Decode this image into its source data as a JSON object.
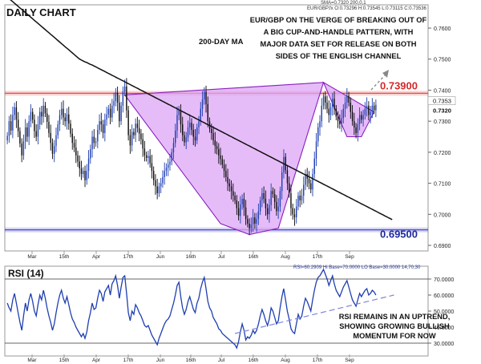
{
  "header": {
    "title": "DAILY CHART",
    "ma_label": "200-DAY MA",
    "info_line": "EUR/GBP.fx O:0.73296 H:0.73545 L:0.73115 C:0.73536",
    "sma_line": "SMA=0.7320  200,0,1",
    "annotation": [
      "EUR/GBP ON THE VERGE OF BREAKING OUT OF",
      "A BIG CUP-AND-HANDLE PATTERN, WITH",
      "MAJOR DATA SET FOR RELEASE ON BOTH",
      "SIDES OF THE ENGLISH CHANNEL"
    ]
  },
  "colors": {
    "bull": "#1f3fb0",
    "bear": "#0a0a0a",
    "resistance": "#e23b3b",
    "support": "#3a3acc",
    "cup_fill": "#dca6f6",
    "cup_edge": "#8a1fbf",
    "rsi": "#1f3fb0"
  },
  "rsi_panel": {
    "title": "RSI (14)",
    "info_line": "RSI=60.2909  Hi Base=70.0000  LO Base=30.0000     14,70,30",
    "note": [
      "RSI REMAINS IN AN UPTREND,",
      "SHOWING GROWING BULLISH",
      "MOMENTUM FOR NOW"
    ]
  },
  "chart_data": [
    {
      "type": "candlestick",
      "title": "DAILY CHART",
      "instrument": "EUR/GBP",
      "x_tick_labels": [
        "Mar",
        "15th",
        "Apr",
        "17th",
        "Jun",
        "16th",
        "Jul",
        "16th",
        "Aug",
        "17th",
        "Sep"
      ],
      "y_ticks": [
        0.76,
        0.75,
        0.74,
        0.73,
        0.72,
        0.71,
        0.7,
        0.69
      ],
      "y_tick_labels": [
        "0.7600",
        "0.7500",
        "0.7400",
        "0.7300",
        "0.7200",
        "0.7100",
        "0.7000",
        "0.6900"
      ],
      "ylim": [
        0.6882,
        0.7675
      ],
      "levels": [
        {
          "name": "resistance",
          "label": "0.73900",
          "value": 0.739
        },
        {
          "name": "support",
          "label": "0.69500",
          "value": 0.695
        }
      ],
      "current_price_labels": [
        "0.7353",
        "0.7320"
      ],
      "series": [
        {
          "name": "EUR/GBP",
          "close": [
            0.7253,
            0.73,
            0.727,
            0.732,
            0.7345,
            0.7305,
            0.7268,
            0.7228,
            0.719,
            0.7235,
            0.728,
            0.725,
            0.73,
            0.733,
            0.7305,
            0.7268,
            0.725,
            0.729,
            0.733,
            0.7315,
            0.735,
            0.7325,
            0.7298,
            0.7262,
            0.723,
            0.7195,
            0.722,
            0.7255,
            0.729,
            0.732,
            0.734,
            0.7312,
            0.73,
            0.7322,
            0.7292,
            0.726,
            0.723,
            0.7215,
            0.719,
            0.717,
            0.7148,
            0.713,
            0.714,
            0.711,
            0.714,
            0.718,
            0.721,
            0.725,
            0.723,
            0.7235,
            0.7272,
            0.73,
            0.729,
            0.7262,
            0.7305,
            0.7322,
            0.734,
            0.7312,
            0.735,
            0.7365,
            0.7392,
            0.736,
            0.73,
            0.735,
            0.7395,
            0.7412,
            0.7335,
            0.7255,
            0.7222,
            0.7265,
            0.7255,
            0.7292,
            0.7278,
            0.726,
            0.7242,
            0.7212,
            0.719,
            0.7182,
            0.7188,
            0.7165,
            0.714,
            0.711,
            0.709,
            0.7068,
            0.709,
            0.71,
            0.712,
            0.714,
            0.715,
            0.716,
            0.717,
            0.72,
            0.723,
            0.727,
            0.732,
            0.7335,
            0.729,
            0.7255,
            0.7232,
            0.7248,
            0.728,
            0.7295,
            0.7272,
            0.725,
            0.7238,
            0.728,
            0.73,
            0.734,
            0.737,
            0.7395,
            0.7355,
            0.73,
            0.7275,
            0.7262,
            0.7238,
            0.722,
            0.721,
            0.719,
            0.7178,
            0.716,
            0.714,
            0.712,
            0.71,
            0.709,
            0.7075,
            0.706,
            0.7045,
            0.702,
            0.6995,
            0.7032,
            0.705,
            0.7022,
            0.6985,
            0.697,
            0.6955,
            0.6968,
            0.699,
            0.697,
            0.6985,
            0.701,
            0.7045,
            0.7068,
            0.705,
            0.702,
            0.7,
            0.703,
            0.7075,
            0.7065,
            0.704,
            0.701,
            0.7025,
            0.7075,
            0.7135,
            0.7185,
            0.7142,
            0.71,
            0.7068,
            0.702,
            0.7,
            0.699,
            0.7025,
            0.706,
            0.7045,
            0.706,
            0.7095,
            0.713,
            0.7115,
            0.71,
            0.708,
            0.713,
            0.718,
            0.7235,
            0.728,
            0.73,
            0.735,
            0.738,
            0.736,
            0.734,
            0.732,
            0.7345,
            0.7372,
            0.734,
            0.7315,
            0.73,
            0.729,
            0.731,
            0.734,
            0.736,
            0.7382,
            0.736,
            0.733,
            0.73,
            0.728,
            0.7262,
            0.729,
            0.732,
            0.7305,
            0.732,
            0.734,
            0.735,
            0.732,
            0.733,
            0.735,
            0.7335,
            0.7353
          ]
        },
        {
          "name": "200-DAY MA",
          "value": [
            0.77,
            0.7695,
            0.769,
            0.7685,
            0.768,
            0.7675,
            0.767,
            0.7665,
            0.766,
            0.7655,
            0.765,
            0.7645,
            0.764,
            0.7635,
            0.763,
            0.7625,
            0.762,
            0.7615,
            0.761,
            0.7605,
            0.76,
            0.7595,
            0.759,
            0.7585,
            0.758,
            0.7575,
            0.757,
            0.7565,
            0.756,
            0.7555,
            0.755,
            0.7545,
            0.754,
            0.7535,
            0.753,
            0.7525,
            0.752,
            0.7515,
            0.751,
            0.7505,
            0.75,
            0.7497,
            0.7494,
            0.7491,
            0.7489,
            0.7486,
            0.7483,
            0.7481,
            0.7478,
            0.7475,
            0.7472,
            0.7469,
            0.7466,
            0.7463,
            0.746,
            0.7457,
            0.7454,
            0.7451,
            0.7448,
            0.7445,
            0.7442,
            0.7439,
            0.7436,
            0.7433,
            0.743,
            0.7427,
            0.7424,
            0.7421,
            0.7418,
            0.7415,
            0.7412,
            0.7409,
            0.7406,
            0.7403,
            0.74,
            0.7397,
            0.7394,
            0.7391,
            0.7388,
            0.7385,
            0.7382,
            0.7379,
            0.7376,
            0.7373,
            0.737,
            0.7367,
            0.7364,
            0.7361,
            0.7358,
            0.7355,
            0.7352,
            0.7349,
            0.7346,
            0.7343,
            0.734,
            0.7337,
            0.7334,
            0.7331,
            0.7328,
            0.7325,
            0.7322,
            0.7319,
            0.7316,
            0.7313,
            0.731,
            0.7307,
            0.7304,
            0.7301,
            0.7298,
            0.7295,
            0.7292,
            0.7289,
            0.7286,
            0.7283,
            0.728,
            0.7277,
            0.7274,
            0.7271,
            0.7268,
            0.7265,
            0.7262,
            0.7259,
            0.7256,
            0.7253,
            0.725,
            0.7247,
            0.7244,
            0.7241,
            0.7238,
            0.7235,
            0.7232,
            0.7229,
            0.7226,
            0.7223,
            0.722,
            0.7217,
            0.7214,
            0.7211,
            0.7208,
            0.7205,
            0.7202,
            0.7199,
            0.7196,
            0.7193,
            0.719,
            0.7187,
            0.7184,
            0.7181,
            0.7178,
            0.7175,
            0.7172,
            0.7169,
            0.7166,
            0.7163,
            0.716,
            0.7157,
            0.7154,
            0.7151,
            0.7148,
            0.7145,
            0.7142,
            0.7139,
            0.7136,
            0.7133,
            0.713,
            0.7127,
            0.7124,
            0.7121,
            0.7118,
            0.7115,
            0.7112,
            0.7109,
            0.7106,
            0.7103,
            0.71,
            0.7097,
            0.7094,
            0.7091,
            0.7088,
            0.7085,
            0.7082,
            0.7079,
            0.7076,
            0.7073,
            0.707,
            0.7067,
            0.7064,
            0.7061,
            0.7058,
            0.7055,
            0.7052,
            0.7049,
            0.7046,
            0.7043,
            0.704,
            0.7037,
            0.7034,
            0.7031,
            0.7028,
            0.7025,
            0.7022,
            0.7019,
            0.7016,
            0.7013,
            0.701,
            0.7007,
            0.7004,
            0.7001,
            0.6998,
            0.6995,
            0.6992,
            0.6989,
            0.6986,
            0.6983
          ]
        }
      ],
      "cup_and_handle": {
        "cup_points": [
          [
            0.7385,
            "Jun"
          ],
          [
            0.697,
            "Jul"
          ],
          [
            0.6935,
            "Jul 16th"
          ],
          [
            0.6955,
            "Aug"
          ],
          [
            0.7425,
            "Aug 17th"
          ]
        ]
      }
    },
    {
      "type": "line",
      "title": "RSI (14)",
      "x_tick_labels": [
        "Mar",
        "15th",
        "Apr",
        "17th",
        "Jun",
        "16th",
        "Jul",
        "16th",
        "Aug",
        "17th",
        "Sep"
      ],
      "y_ticks": [
        30,
        40,
        50,
        60,
        70
      ],
      "y_tick_labels": [
        "30.0000",
        "40.0000",
        "50.0000",
        "60.0000",
        "70.0000"
      ],
      "ylim": [
        22,
        78
      ],
      "levels": [
        70,
        30
      ],
      "series": [
        {
          "name": "RSI",
          "values": [
            55,
            52,
            50,
            57,
            61,
            55,
            49,
            43,
            38,
            47,
            55,
            50,
            57,
            61,
            56,
            50,
            47,
            54,
            60,
            57,
            63,
            58,
            52,
            47,
            43,
            38,
            42,
            49,
            55,
            60,
            63,
            58,
            55,
            59,
            54,
            49,
            45,
            43,
            40,
            38,
            36,
            34,
            36,
            33,
            37,
            44,
            49,
            55,
            51,
            52,
            58,
            63,
            61,
            56,
            62,
            64,
            66,
            60,
            67,
            69,
            72,
            66,
            58,
            65,
            71,
            72,
            61,
            49,
            44,
            50,
            48,
            54,
            52,
            49,
            47,
            44,
            41,
            40,
            41,
            38,
            35,
            33,
            31,
            29,
            33,
            36,
            39,
            42,
            44,
            45,
            47,
            51,
            55,
            60,
            66,
            68,
            59,
            52,
            48,
            51,
            56,
            59,
            55,
            51,
            49,
            55,
            58,
            64,
            68,
            71,
            64,
            56,
            52,
            50,
            46,
            44,
            42,
            39,
            38,
            36,
            35,
            34,
            33,
            32,
            31,
            30,
            29,
            27,
            31,
            37,
            42,
            38,
            32,
            34,
            33,
            35,
            38,
            36,
            38,
            42,
            47,
            51,
            48,
            44,
            41,
            45,
            52,
            50,
            46,
            42,
            44,
            52,
            59,
            64,
            57,
            50,
            45,
            39,
            37,
            36,
            42,
            48,
            45,
            47,
            53,
            58,
            56,
            53,
            50,
            57,
            63,
            68,
            71,
            72,
            74,
            76,
            73,
            70,
            66,
            69,
            72,
            67,
            63,
            61,
            59,
            62,
            65,
            67,
            69,
            65,
            61,
            57,
            55,
            53,
            57,
            61,
            59,
            61,
            63,
            64,
            60,
            61,
            63,
            62,
            60
          ]
        }
      ],
      "trendline": [
        [
          36,
          "Jul 16th"
        ],
        [
          60,
          "Sep"
        ]
      ]
    }
  ]
}
